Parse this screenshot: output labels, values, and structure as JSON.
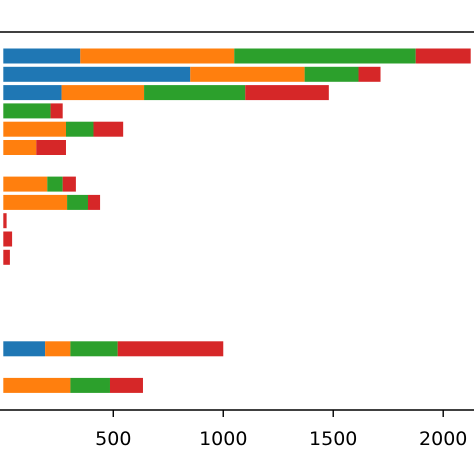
{
  "chart_data": {
    "type": "bar",
    "orientation": "horizontal",
    "stacked": true,
    "title": "",
    "xlabel": "",
    "ylabel": "",
    "xlim": [
      -15,
      2140
    ],
    "x_ticks": [
      500,
      1000,
      1500,
      2000
    ],
    "x_tick_labels": [
      "500",
      "1000",
      "1500",
      "2000"
    ],
    "grid": false,
    "legend": "none",
    "colors": [
      "#1f77b4",
      "#ff7f0e",
      "#2ca02c",
      "#d62728"
    ],
    "series": [
      {
        "values": [
          350,
          850,
          265,
          0,
          0,
          0,
          0,
          0,
          0,
          0,
          0,
          0,
          0,
          0,
          0,
          0,
          190,
          0,
          0
        ]
      },
      {
        "values": [
          700,
          520,
          375,
          0,
          285,
          150,
          0,
          200,
          290,
          0,
          0,
          0,
          0,
          0,
          0,
          0,
          115,
          0,
          305
        ]
      },
      {
        "values": [
          825,
          245,
          460,
          215,
          125,
          0,
          0,
          70,
          95,
          0,
          0,
          0,
          0,
          0,
          0,
          0,
          215,
          0,
          180
        ]
      },
      {
        "values": [
          250,
          100,
          380,
          55,
          135,
          135,
          0,
          60,
          55,
          15,
          40,
          30,
          0,
          0,
          0,
          0,
          480,
          0,
          150
        ]
      }
    ]
  }
}
